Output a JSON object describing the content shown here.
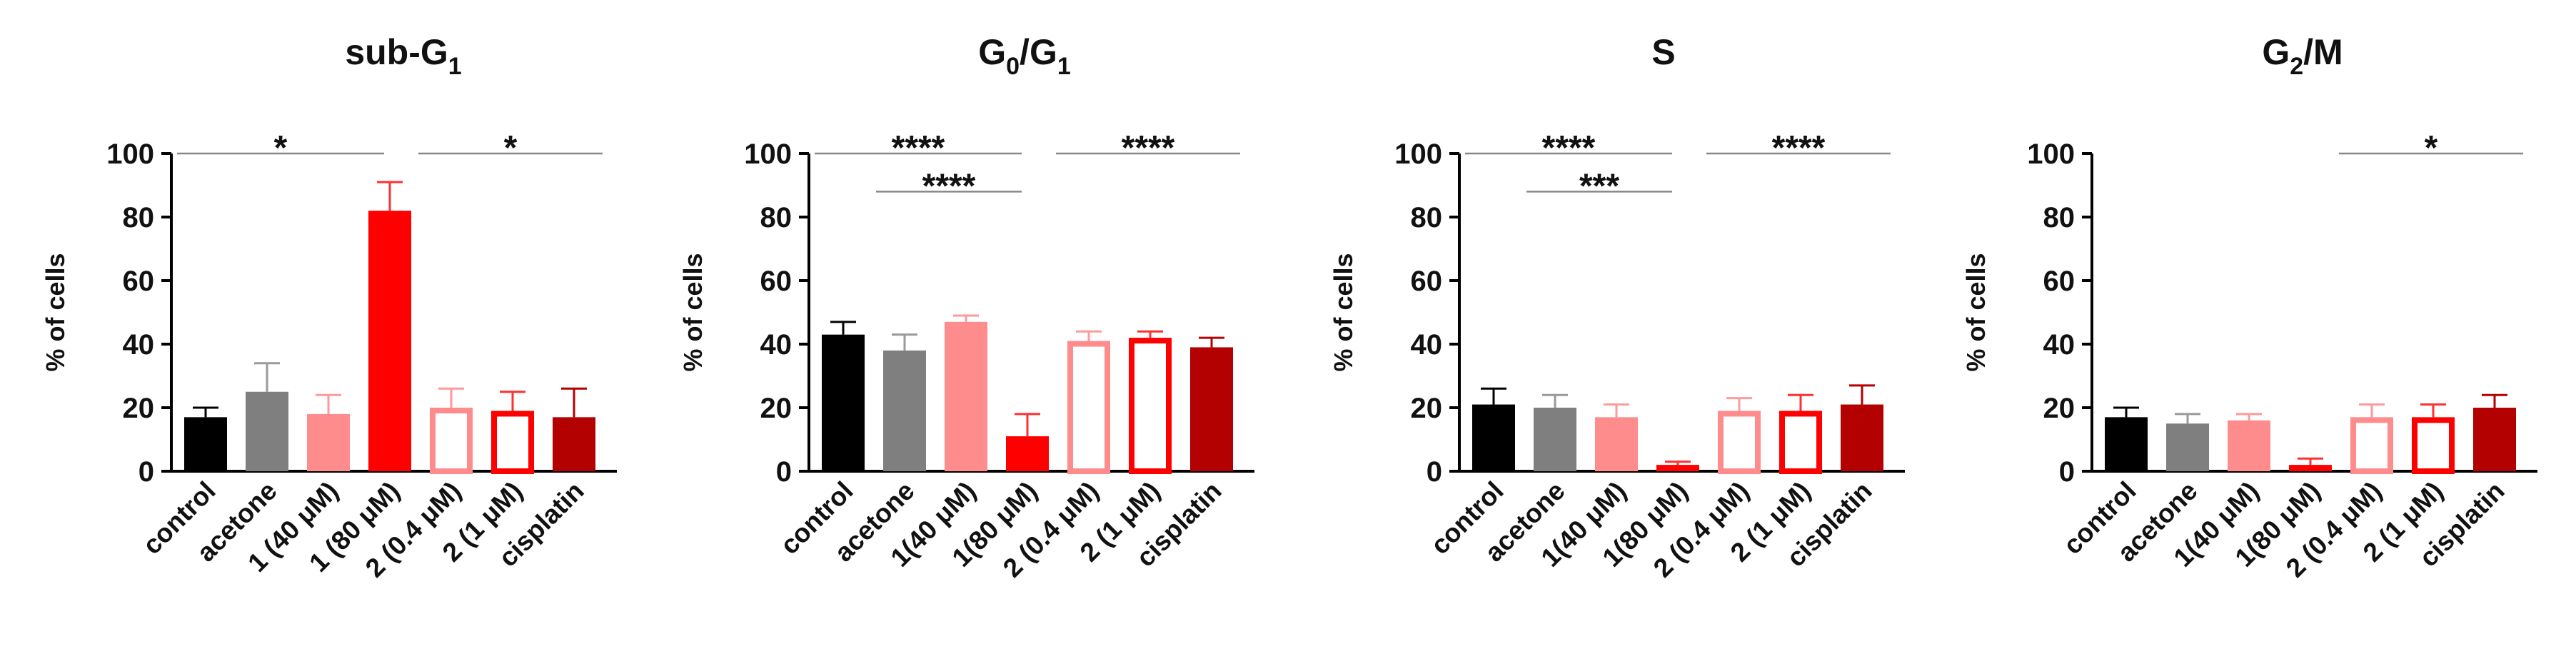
{
  "chart_data": [
    {
      "type": "bar",
      "title": "sub-G",
      "title_sub": "1",
      "title_rest": "",
      "ylabel": "% of cells",
      "ylim": [
        0,
        100
      ],
      "yticks": [
        "0",
        "20",
        "40",
        "60",
        "80",
        "100"
      ],
      "categories": [
        "control",
        "acetone",
        "1 (40 μM)",
        "1 (80 μM)",
        "2 (0.4 μM)",
        "2 (1 μM)",
        "cisplatin"
      ],
      "values": [
        17,
        25,
        18,
        82,
        20,
        19,
        17
      ],
      "errors": [
        3,
        9,
        6,
        9,
        6,
        6,
        9
      ],
      "significance": [
        {
          "from": 0,
          "to": 3,
          "label": "*",
          "y": 100
        },
        {
          "from": 3,
          "to": 6,
          "label": "*",
          "y": 100
        }
      ]
    },
    {
      "type": "bar",
      "title": "G",
      "title_sub": "0",
      "title_rest": "/G",
      "title_sub2": "1",
      "ylabel": "% of cells",
      "ylim": [
        0,
        100
      ],
      "yticks": [
        "0",
        "20",
        "40",
        "60",
        "80",
        "100"
      ],
      "categories": [
        "control",
        "acetone",
        "1(40 μM)",
        "1(80 μM)",
        "2 (0.4 μM)",
        "2 (1 μM)",
        "cisplatin"
      ],
      "values": [
        43,
        38,
        47,
        11,
        41,
        42,
        39
      ],
      "errors": [
        4,
        5,
        2,
        7,
        3,
        2,
        3
      ],
      "significance": [
        {
          "from": 0,
          "to": 3,
          "label": "****",
          "y": 100
        },
        {
          "from": 1,
          "to": 3,
          "label": "****",
          "y": 88
        },
        {
          "from": 3,
          "to": 6,
          "label": "****",
          "y": 100
        }
      ]
    },
    {
      "type": "bar",
      "title": "S",
      "title_sub": "",
      "title_rest": "",
      "ylabel": "% of cells",
      "ylim": [
        0,
        100
      ],
      "yticks": [
        "0",
        "20",
        "40",
        "60",
        "80",
        "100"
      ],
      "categories": [
        "control",
        "acetone",
        "1(40 μM)",
        "1(80 μM)",
        "2 (0.4 μM)",
        "2 (1 μM)",
        "cisplatin"
      ],
      "values": [
        21,
        20,
        17,
        2,
        19,
        19,
        21
      ],
      "errors": [
        5,
        4,
        4,
        1,
        4,
        5,
        6
      ],
      "significance": [
        {
          "from": 0,
          "to": 3,
          "label": "****",
          "y": 100
        },
        {
          "from": 1,
          "to": 3,
          "label": "***",
          "y": 88
        },
        {
          "from": 3,
          "to": 6,
          "label": "****",
          "y": 100
        }
      ]
    },
    {
      "type": "bar",
      "title": "G",
      "title_sub": "2",
      "title_rest": "/M",
      "ylabel": "% of cells",
      "ylim": [
        0,
        100
      ],
      "yticks": [
        "0",
        "20",
        "40",
        "60",
        "80",
        "100"
      ],
      "categories": [
        "control",
        "acetone",
        "1(40 μM)",
        "1(80 μM)",
        "2 (0.4 μM)",
        "2 (1 μM)",
        "cisplatin"
      ],
      "values": [
        17,
        15,
        16,
        2,
        17,
        17,
        20
      ],
      "errors": [
        3,
        3,
        2,
        2,
        4,
        4,
        4
      ],
      "significance": [
        {
          "from": 3,
          "to": 6,
          "label": "*",
          "y": 100
        }
      ]
    }
  ],
  "style": {
    "bar_colors": [
      "#000000",
      "#7f7f7f",
      "#ff8c8c",
      "#ff0000",
      "#ff8c8c",
      "#ff0000",
      "#b30000"
    ],
    "bar_hollow": [
      false,
      false,
      false,
      false,
      true,
      true,
      false
    ],
    "error_colors": [
      "#000000",
      "#9a9a9a",
      "#ff9a9a",
      "#ff3030",
      "#ff9a9a",
      "#ff3030",
      "#b30000"
    ],
    "axis_color": "#000000",
    "sig_line_color": "#888888"
  }
}
